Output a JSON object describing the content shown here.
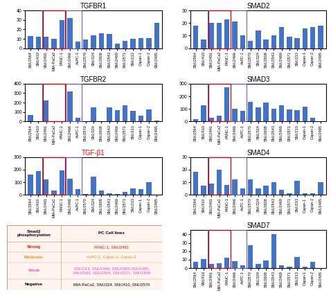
{
  "chart_data": [
    {
      "type": "bar",
      "title": "TGFBR1",
      "categories": [
        "SNU2564",
        "SNU410",
        "SNU2491",
        "MIA-PaCa2",
        "PANC-1",
        "SNU2466",
        "AsPC-1",
        "SNU2570",
        "SNU324",
        "SNU2608",
        "SNU2543",
        "SNU2469",
        "SNU2571",
        "SNU213",
        "Capan-1",
        "Capan-2",
        "SNU2485"
      ],
      "values": [
        13,
        12,
        12,
        10,
        30,
        32,
        7,
        9,
        14,
        16,
        15,
        5,
        8,
        10,
        11,
        11,
        27
      ],
      "color": "#4472c4",
      "ylim": [
        0,
        40
      ],
      "yticks": [
        0,
        10,
        20,
        30,
        40
      ],
      "boxes": [
        {
          "from": "SNU2491",
          "to": "PANC-1",
          "color": "#5555cc"
        },
        {
          "from": "SNU2466",
          "to": "AsPC-1",
          "color": "#5555cc"
        },
        {
          "from": "SNU2491",
          "to": "PANC-1",
          "color": "#cc0000"
        }
      ]
    },
    {
      "type": "bar",
      "title": "TGFBR2",
      "categories": [
        "SNU2564",
        "SNU410",
        "SNU2491",
        "MIA-PaCa2",
        "PANC-1",
        "SNU2466",
        "AsPC-1",
        "SNU2570",
        "SNU324",
        "SNU2608",
        "SNU2543",
        "SNU2469",
        "SNU2571",
        "SNU213",
        "Capan-1",
        "Capan-2",
        "SNU2485"
      ],
      "values": [
        70,
        0,
        220,
        0,
        5,
        320,
        40,
        0,
        150,
        0,
        150,
        120,
        170,
        110,
        60,
        130,
        10
      ],
      "color": "#4472c4",
      "ylim": [
        0,
        400
      ],
      "yticks": [
        0,
        100,
        200,
        300,
        400
      ],
      "boxes": [
        {
          "from": "SNU2491",
          "to": "PANC-1",
          "color": "#5555cc"
        },
        {
          "from": "SNU2466",
          "to": "AsPC-1",
          "color": "#5555cc"
        },
        {
          "from": "SNU2491",
          "to": "PANC-1",
          "color": "#cc0000"
        }
      ]
    },
    {
      "type": "bar",
      "title": "TGF-β1",
      "title_color": "red",
      "categories": [
        "SNU2564",
        "SNU410",
        "SNU2491",
        "MIA-PaCa2",
        "PANC-1",
        "SNU2466",
        "AsPC-1",
        "SNU2570",
        "SNU324",
        "SNU2608",
        "SNU2543",
        "SNU2469",
        "SNU2571",
        "SNU213",
        "Capan-1",
        "Capan-2",
        "SNU2485"
      ],
      "values": [
        160,
        190,
        120,
        35,
        195,
        130,
        45,
        5,
        145,
        35,
        15,
        5,
        25,
        50,
        45,
        100,
        0
      ],
      "color": "#4472c4",
      "ylim": [
        0,
        300
      ],
      "yticks": [
        0,
        100,
        200,
        300
      ],
      "boxes": [
        {
          "from": "SNU2491",
          "to": "PANC-1",
          "color": "#5555cc"
        },
        {
          "from": "SNU2466",
          "to": "AsPC-1",
          "color": "#5555cc"
        },
        {
          "from": "SNU2491",
          "to": "PANC-1",
          "color": "#cc0000"
        }
      ]
    },
    {
      "type": "bar",
      "title": "SMAD2",
      "categories": [
        "SNU2564",
        "SNU410",
        "SNU2491",
        "MIA-PaCa2",
        "PANC-1",
        "SNU2466",
        "AsPC-1",
        "SNU2570",
        "SNU324",
        "SNU2608",
        "SNU2543",
        "SNU2469",
        "SNU2571",
        "SNU213",
        "Capan-1",
        "Capan-2",
        "SNU2485"
      ],
      "values": [
        18,
        7,
        20,
        20,
        23,
        21,
        10,
        6,
        14,
        7,
        10,
        17,
        9,
        8,
        16,
        17,
        18
      ],
      "color": "#4472c4",
      "ylim": [
        0,
        30
      ],
      "yticks": [
        0,
        10,
        20,
        30
      ],
      "boxes": [
        {
          "from": "SNU2491",
          "to": "PANC-1",
          "color": "#5555cc"
        },
        {
          "from": "SNU2466",
          "to": "AsPC-1",
          "color": "#5555cc"
        },
        {
          "from": "SNU2491",
          "to": "PANC-1",
          "color": "#cc0000"
        }
      ]
    },
    {
      "type": "bar",
      "title": "SMAD3",
      "categories": [
        "SNU2564",
        "SNU410",
        "SNU2491",
        "MIA-PaCa2",
        "PANC-1",
        "SNU2466",
        "AsPC-1",
        "SNU2570",
        "SNU324",
        "SNU2608",
        "SNU2543",
        "SNU2469",
        "SNU2571",
        "SNU213",
        "Capan-1",
        "Capan-2",
        "SNU2485"
      ],
      "values": [
        20,
        130,
        30,
        45,
        270,
        100,
        85,
        155,
        115,
        150,
        100,
        130,
        95,
        88,
        120,
        30,
        0
      ],
      "color": "#4472c4",
      "ylim": [
        0,
        300
      ],
      "yticks": [
        0,
        100,
        200,
        300
      ],
      "boxes": [
        {
          "from": "SNU2491",
          "to": "PANC-1",
          "color": "#5555cc"
        },
        {
          "from": "SNU2466",
          "to": "AsPC-1",
          "color": "#5555cc"
        },
        {
          "from": "SNU2491",
          "to": "PANC-1",
          "color": "#cc0000"
        }
      ]
    },
    {
      "type": "bar",
      "title": "SMAD4",
      "categories": [
        "SNU2564",
        "SNU410",
        "SNU2491",
        "MIA-PaCa2",
        "PANC-1",
        "SNU2466",
        "AsPC-1",
        "SNU2570",
        "SNU324",
        "SNU2608",
        "SNU2543",
        "SNU2469",
        "SNU2571",
        "SNU213",
        "Capan-1",
        "Capan-2",
        "SNU2485"
      ],
      "values": [
        18,
        7,
        9,
        20,
        8,
        12,
        5,
        12,
        5,
        7,
        10,
        4,
        1,
        11,
        1,
        1,
        10
      ],
      "color": "#4472c4",
      "ylim": [
        0,
        30
      ],
      "yticks": [
        0,
        10,
        20,
        30
      ],
      "boxes": [
        {
          "from": "SNU2491",
          "to": "PANC-1",
          "color": "#5555cc"
        },
        {
          "from": "SNU2466",
          "to": "AsPC-1",
          "color": "#5555cc"
        },
        {
          "from": "SNU2491",
          "to": "PANC-1",
          "color": "#cc0000"
        }
      ]
    },
    {
      "type": "bar",
      "title": "SMAD7",
      "categories": [
        "SNU2564",
        "SNU410",
        "SNU2491",
        "MIA-PaCa2",
        "PANC-1",
        "SNU2466",
        "AsPC-1",
        "SNU2570",
        "SNU324",
        "SNU2608",
        "SNU2543",
        "SNU2469",
        "SNU2571",
        "SNU213",
        "Capan-1",
        "Capan-2",
        "SNU2485"
      ],
      "values": [
        7,
        11,
        5,
        6,
        12,
        8,
        3,
        27,
        5,
        9,
        40,
        3,
        2,
        13,
        2,
        7,
        0
      ],
      "color": "#4472c4",
      "ylim": [
        0,
        45
      ],
      "yticks": [
        0,
        10,
        20,
        30,
        40
      ],
      "boxes": [
        {
          "from": "SNU2491",
          "to": "PANC-1",
          "color": "#5555cc"
        },
        {
          "from": "SNU2466",
          "to": "AsPC-1",
          "color": "#5555cc"
        },
        {
          "from": "SNU2491",
          "to": "PANC-1",
          "color": "#cc0000"
        }
      ]
    },
    {
      "type": "table",
      "columns": [
        "Smad2\nphosphorylation",
        "PC Cell lines"
      ],
      "rows": [
        {
          "label": "Strong",
          "cells": "PANC-1, SNU2491",
          "color": "#ff0000"
        },
        {
          "label": "Moderate",
          "cells": "AsPC-1, Capan-1, Capan-2",
          "color": "#ff8800"
        },
        {
          "label": "Weak",
          "cells": "SNU213, SNU2466, SNU2469,SNU2485,\nSNU2543, SNU2564, SNU2571, SNU2608",
          "color": "#ff44cc"
        },
        {
          "label": "Negative",
          "cells": "MIA-PaCa2, SNU324, SNU410, SNU2570",
          "color": "#000000"
        }
      ]
    }
  ]
}
